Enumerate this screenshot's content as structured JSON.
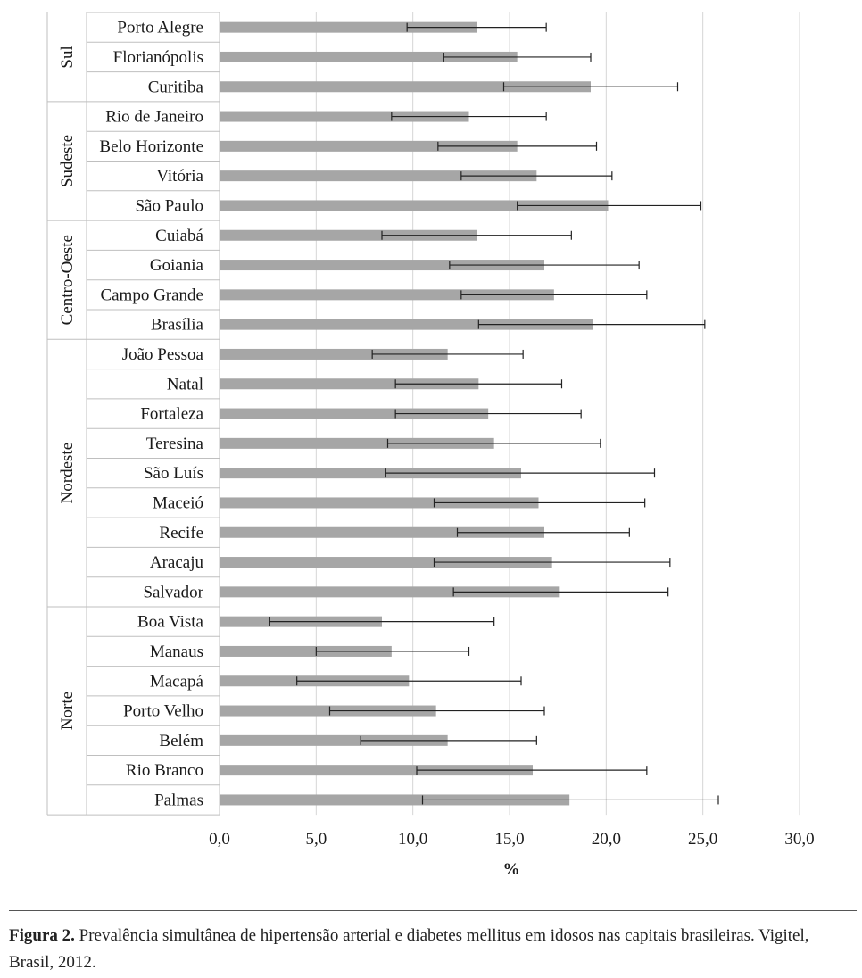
{
  "chart_data": {
    "type": "bar",
    "orientation": "horizontal",
    "xlabel": "%",
    "xlim": [
      0,
      30
    ],
    "xticks": [
      "0,0",
      "5,0",
      "10,0",
      "15,0",
      "20,0",
      "25,0",
      "30,0"
    ],
    "grid": true,
    "series": [
      {
        "name": "Prevalência",
        "color": "#a6a6a6"
      }
    ],
    "groups": [
      {
        "region": "Sul",
        "rows": [
          {
            "city": "Porto Alegre",
            "value": 13.3,
            "lower": 9.7,
            "upper": 16.9
          },
          {
            "city": "Florianópolis",
            "value": 15.4,
            "lower": 11.6,
            "upper": 19.2
          },
          {
            "city": "Curitiba",
            "value": 19.2,
            "lower": 14.7,
            "upper": 23.7
          }
        ]
      },
      {
        "region": "Sudeste",
        "rows": [
          {
            "city": "Rio de Janeiro",
            "value": 12.9,
            "lower": 8.9,
            "upper": 16.9
          },
          {
            "city": "Belo Horizonte",
            "value": 15.4,
            "lower": 11.3,
            "upper": 19.5
          },
          {
            "city": "Vitória",
            "value": 16.4,
            "lower": 12.5,
            "upper": 20.3
          },
          {
            "city": "São Paulo",
            "value": 20.1,
            "lower": 15.4,
            "upper": 24.9
          }
        ]
      },
      {
        "region": "Centro-Oeste",
        "rows": [
          {
            "city": "Cuiabá",
            "value": 13.3,
            "lower": 8.4,
            "upper": 18.2
          },
          {
            "city": "Goiania",
            "value": 16.8,
            "lower": 11.9,
            "upper": 21.7
          },
          {
            "city": "Campo Grande",
            "value": 17.3,
            "lower": 12.5,
            "upper": 22.1
          },
          {
            "city": "Brasília",
            "value": 19.3,
            "lower": 13.4,
            "upper": 25.1
          }
        ]
      },
      {
        "region": "Nordeste",
        "rows": [
          {
            "city": "João Pessoa",
            "value": 11.8,
            "lower": 7.9,
            "upper": 15.7
          },
          {
            "city": "Natal",
            "value": 13.4,
            "lower": 9.1,
            "upper": 17.7
          },
          {
            "city": "Fortaleza",
            "value": 13.9,
            "lower": 9.1,
            "upper": 18.7
          },
          {
            "city": "Teresina",
            "value": 14.2,
            "lower": 8.7,
            "upper": 19.7
          },
          {
            "city": "São Luís",
            "value": 15.6,
            "lower": 8.6,
            "upper": 22.5
          },
          {
            "city": "Maceió",
            "value": 16.5,
            "lower": 11.1,
            "upper": 22.0
          },
          {
            "city": "Recife",
            "value": 16.8,
            "lower": 12.3,
            "upper": 21.2
          },
          {
            "city": "Aracaju",
            "value": 17.2,
            "lower": 11.1,
            "upper": 23.3
          },
          {
            "city": "Salvador",
            "value": 17.6,
            "lower": 12.1,
            "upper": 23.2
          }
        ]
      },
      {
        "region": "Norte",
        "rows": [
          {
            "city": "Boa Vista",
            "value": 8.4,
            "lower": 2.6,
            "upper": 14.2
          },
          {
            "city": "Manaus",
            "value": 8.9,
            "lower": 5.0,
            "upper": 12.9
          },
          {
            "city": "Macapá",
            "value": 9.8,
            "lower": 4.0,
            "upper": 15.6
          },
          {
            "city": "Porto Velho",
            "value": 11.2,
            "lower": 5.7,
            "upper": 16.8
          },
          {
            "city": "Belém",
            "value": 11.8,
            "lower": 7.3,
            "upper": 16.4
          },
          {
            "city": "Rio Branco",
            "value": 16.2,
            "lower": 10.2,
            "upper": 22.1
          },
          {
            "city": "Palmas",
            "value": 18.1,
            "lower": 10.5,
            "upper": 25.8
          }
        ]
      }
    ]
  },
  "caption": {
    "label": "Figura 2.",
    "text": " Prevalência simultânea de hipertensão arterial e diabetes mellitus em idosos nas capitais brasileiras. Vigitel, Brasil, 2012."
  }
}
